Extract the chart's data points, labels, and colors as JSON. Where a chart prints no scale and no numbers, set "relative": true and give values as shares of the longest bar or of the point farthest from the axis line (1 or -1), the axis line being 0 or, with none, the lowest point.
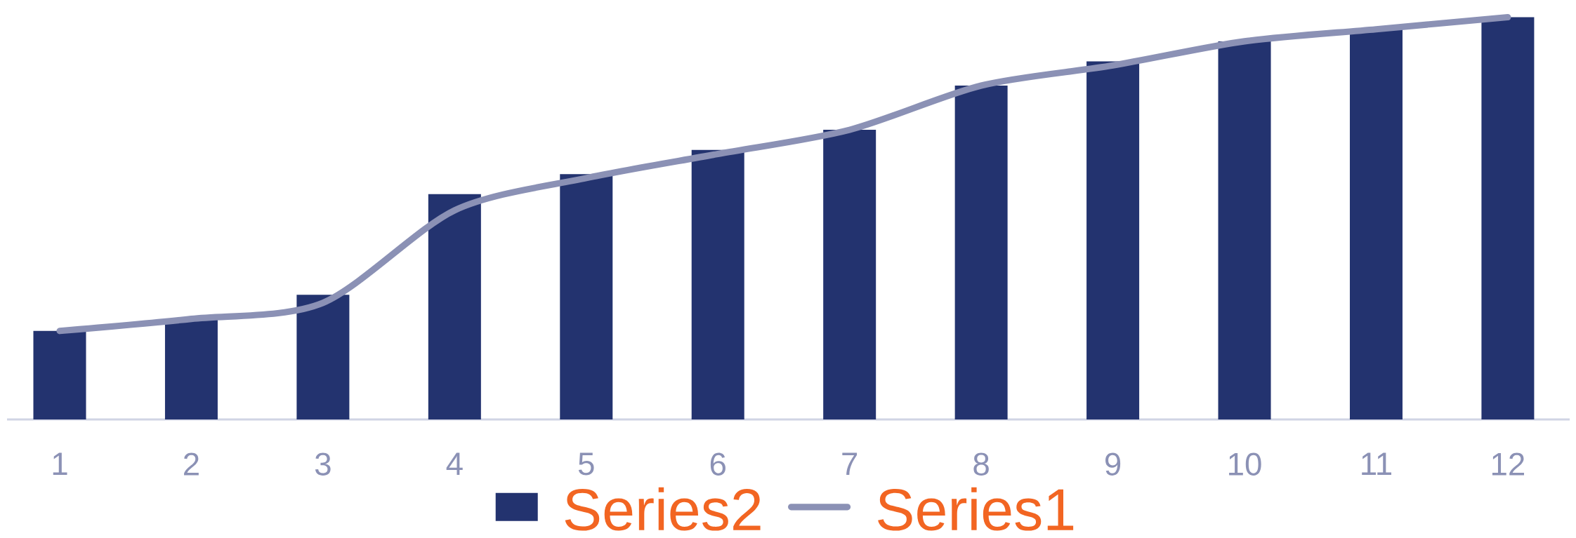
{
  "chart_data": {
    "type": "bar",
    "relative": true,
    "legend": "bottom",
    "categories": [
      "1",
      "2",
      "3",
      "4",
      "5",
      "6",
      "7",
      "8",
      "9",
      "10",
      "11",
      "12"
    ],
    "series": [
      {
        "name": "Series2",
        "color": "#23336f",
        "values": [
          0.22,
          0.25,
          0.31,
          0.56,
          0.61,
          0.67,
          0.72,
          0.83,
          0.89,
          0.94,
          0.97,
          1.0
        ]
      },
      {
        "name": "Series1",
        "type": "line",
        "color": "#8b91b5",
        "values": [
          0.22,
          0.25,
          0.29,
          0.52,
          0.6,
          0.66,
          0.72,
          0.83,
          0.88,
          0.94,
          0.97,
          1.0
        ]
      }
    ]
  }
}
